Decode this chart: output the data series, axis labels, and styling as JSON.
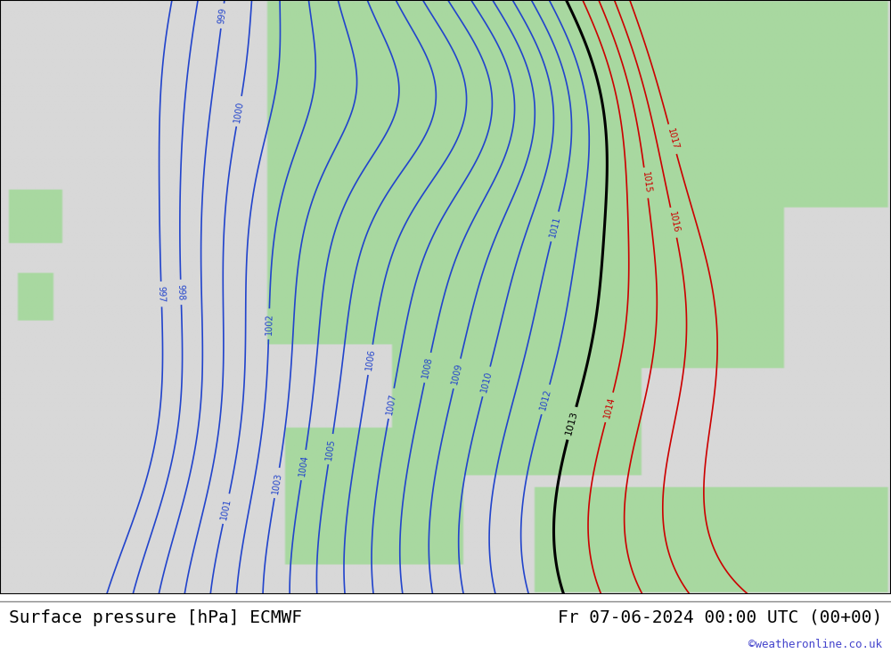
{
  "title_left": "Surface pressure [hPa] ECMWF",
  "title_right": "Fr 07-06-2024 00:00 UTC (00+00)",
  "watermark": "©weatheronline.co.uk",
  "background_color": "#d8d8d8",
  "land_color": "#a8d8a0",
  "fig_width": 10.0,
  "fig_height": 7.33,
  "dpi": 100,
  "title_fontsize": 14,
  "watermark_fontsize": 9,
  "blue_color": "#2244cc",
  "black_color": "#000000",
  "red_color": "#cc0000"
}
